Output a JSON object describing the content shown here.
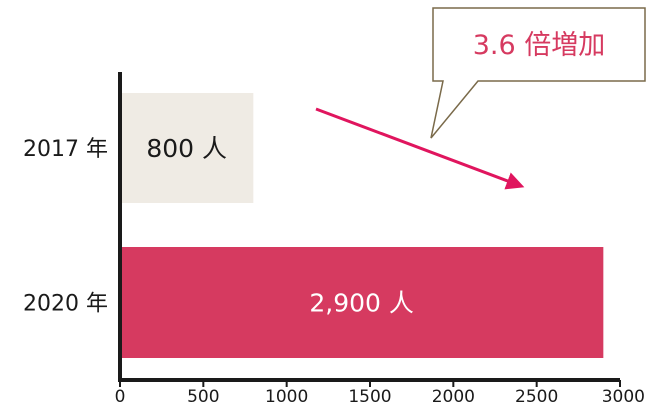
{
  "chart_data": {
    "type": "bar",
    "orientation": "horizontal",
    "categories": [
      "2017 年",
      "2020 年"
    ],
    "values": [
      800,
      2900
    ],
    "value_labels": [
      "800 人",
      "2,900 人"
    ],
    "bar_colors": [
      "#efebe4",
      "#d63a60"
    ],
    "value_label_colors": [
      "#1a1a1a",
      "#ffffff"
    ],
    "xlim": [
      0,
      3000
    ],
    "xticks": [
      0,
      500,
      1000,
      1500,
      2000,
      2500,
      3000
    ],
    "grid": false,
    "annotation": {
      "text": "3.6 倍増加",
      "text_color": "#d63a60",
      "arrow_color": "#e0155e",
      "bubble_border": "#7a6a4a"
    }
  }
}
